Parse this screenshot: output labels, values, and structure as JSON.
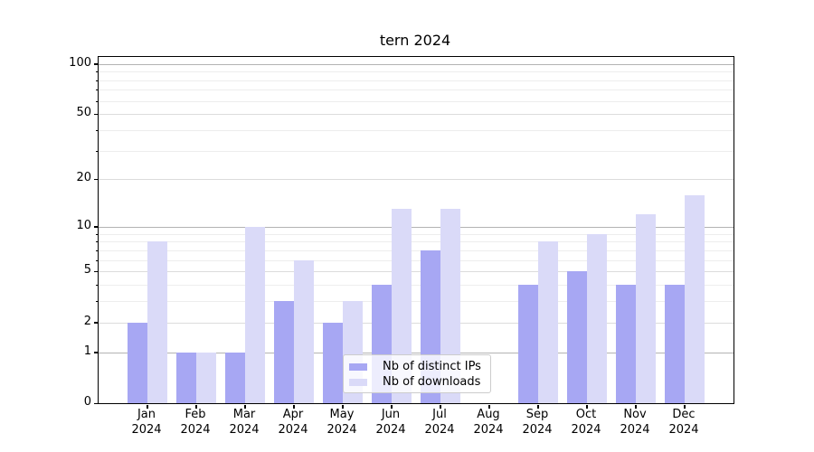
{
  "title": "tern 2024",
  "chart_data": {
    "type": "bar",
    "title": "tern 2024",
    "categories": [
      "Jan",
      "Feb",
      "Mar",
      "Apr",
      "May",
      "Jun",
      "Jul",
      "Aug",
      "Sep",
      "Oct",
      "Nov",
      "Dec"
    ],
    "category_year": "2024",
    "series": [
      {
        "name": "Nb of distinct IPs",
        "color": "#a7a7f3",
        "values": [
          2,
          1,
          1,
          3,
          2,
          4,
          7,
          0,
          4,
          5,
          4,
          4
        ]
      },
      {
        "name": "Nb of downloads",
        "color": "#dadaf8",
        "values": [
          8,
          1,
          10,
          6,
          3,
          13,
          13,
          0,
          8,
          9,
          12,
          16
        ]
      }
    ],
    "yscale": "log1p",
    "ylim": [
      0,
      110
    ],
    "yticks": [
      0,
      1,
      2,
      5,
      10,
      20,
      50,
      100
    ],
    "minor_yticks": [
      3,
      4,
      6,
      7,
      8,
      9,
      30,
      40,
      60,
      70,
      80,
      90
    ],
    "decade_gridlines": [
      1,
      10,
      100
    ],
    "grid": true,
    "legend_position": "lower center",
    "background": "#ffffff"
  }
}
